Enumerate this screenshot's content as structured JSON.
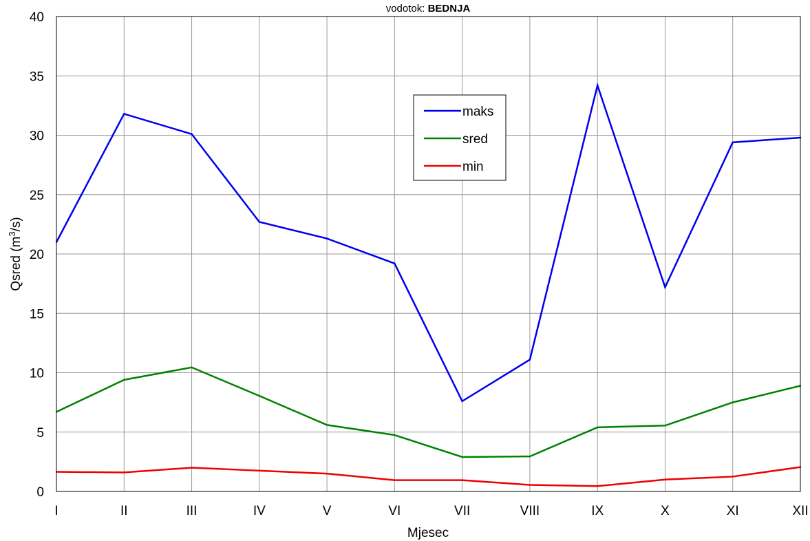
{
  "chart_data": {
    "type": "line",
    "title_prefix": "vodotok: ",
    "title_bold": "BEDNJA",
    "xlabel": "Mjesec",
    "ylabel_main": "Qsred  (m",
    "ylabel_sup": "3",
    "ylabel_tail": "/s)",
    "categories": [
      "I",
      "II",
      "III",
      "IV",
      "V",
      "VI",
      "VII",
      "VIII",
      "IX",
      "X",
      "XI",
      "XII"
    ],
    "ylim": [
      0,
      40
    ],
    "yticks": [
      "0",
      "5",
      "10",
      "15",
      "20",
      "25",
      "30",
      "35",
      "40"
    ],
    "grid": true,
    "legend_position": "upper-center",
    "series": [
      {
        "name": "maks",
        "color": "#0000ee",
        "values": [
          21.0,
          31.8,
          30.1,
          22.7,
          21.3,
          19.2,
          7.6,
          11.1,
          34.2,
          17.2,
          29.4,
          29.8
        ]
      },
      {
        "name": "sred",
        "color": "#008000",
        "values": [
          6.7,
          9.4,
          10.45,
          8.05,
          5.6,
          4.75,
          2.9,
          2.95,
          5.4,
          5.55,
          7.5,
          8.9
        ]
      },
      {
        "name": "min",
        "color": "#ee0000",
        "values": [
          1.65,
          1.6,
          2.0,
          1.75,
          1.5,
          0.95,
          0.95,
          0.55,
          0.45,
          1.0,
          1.25,
          2.05
        ]
      }
    ]
  }
}
